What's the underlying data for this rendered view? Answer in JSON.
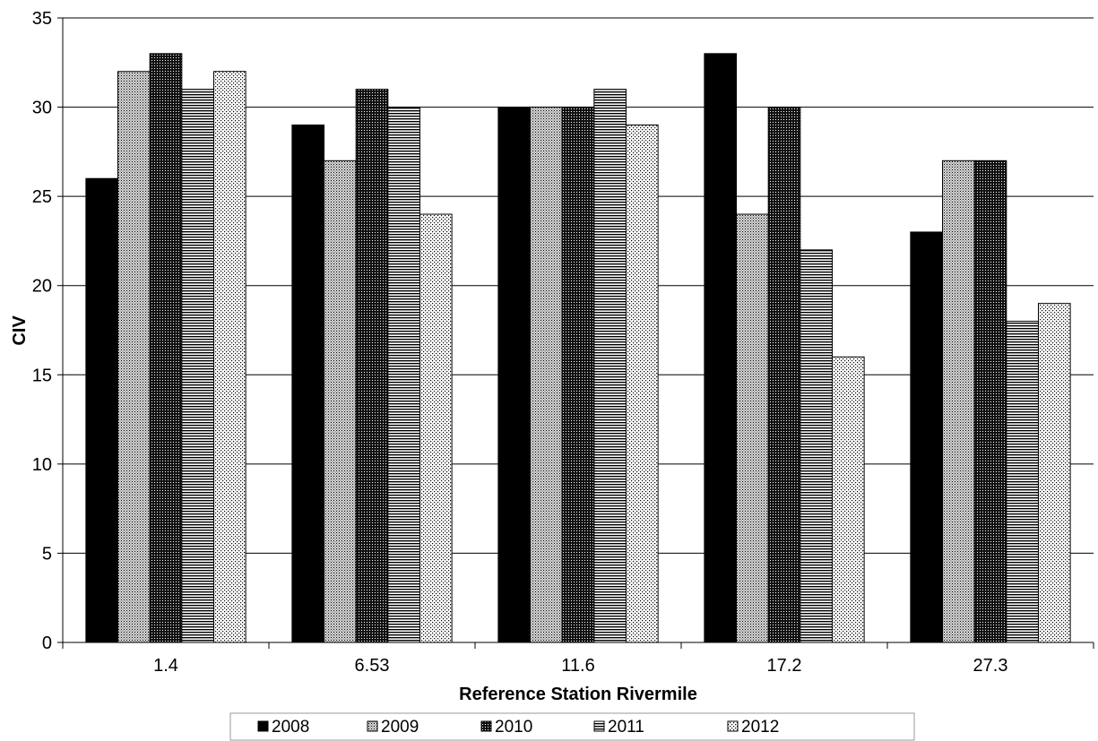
{
  "chart_data": {
    "type": "bar",
    "title": "",
    "xlabel": "Reference Station Rivermile",
    "ylabel": "CIV",
    "categories": [
      "1.4",
      "6.53",
      "11.6",
      "17.2",
      "27.3"
    ],
    "series": [
      {
        "name": "2008",
        "values": [
          26,
          29,
          30,
          33,
          23
        ],
        "pattern": "solid"
      },
      {
        "name": "2009",
        "values": [
          32,
          27,
          30,
          24,
          27
        ],
        "pattern": "crosshatch"
      },
      {
        "name": "2010",
        "values": [
          33,
          31,
          30,
          30,
          27
        ],
        "pattern": "dark-dots"
      },
      {
        "name": "2011",
        "values": [
          31,
          30,
          31,
          22,
          18
        ],
        "pattern": "horizontal-lines"
      },
      {
        "name": "2012",
        "values": [
          32,
          24,
          29,
          16,
          19
        ],
        "pattern": "light-dots"
      }
    ],
    "ylim": [
      0,
      35
    ],
    "yticks": [
      "0",
      "5",
      "10",
      "15",
      "20",
      "25",
      "30",
      "35"
    ],
    "grid": true,
    "legend_position": "bottom",
    "colors": {
      "bar_stroke": "#000000",
      "grid": "#000000",
      "background": "#ffffff"
    }
  }
}
